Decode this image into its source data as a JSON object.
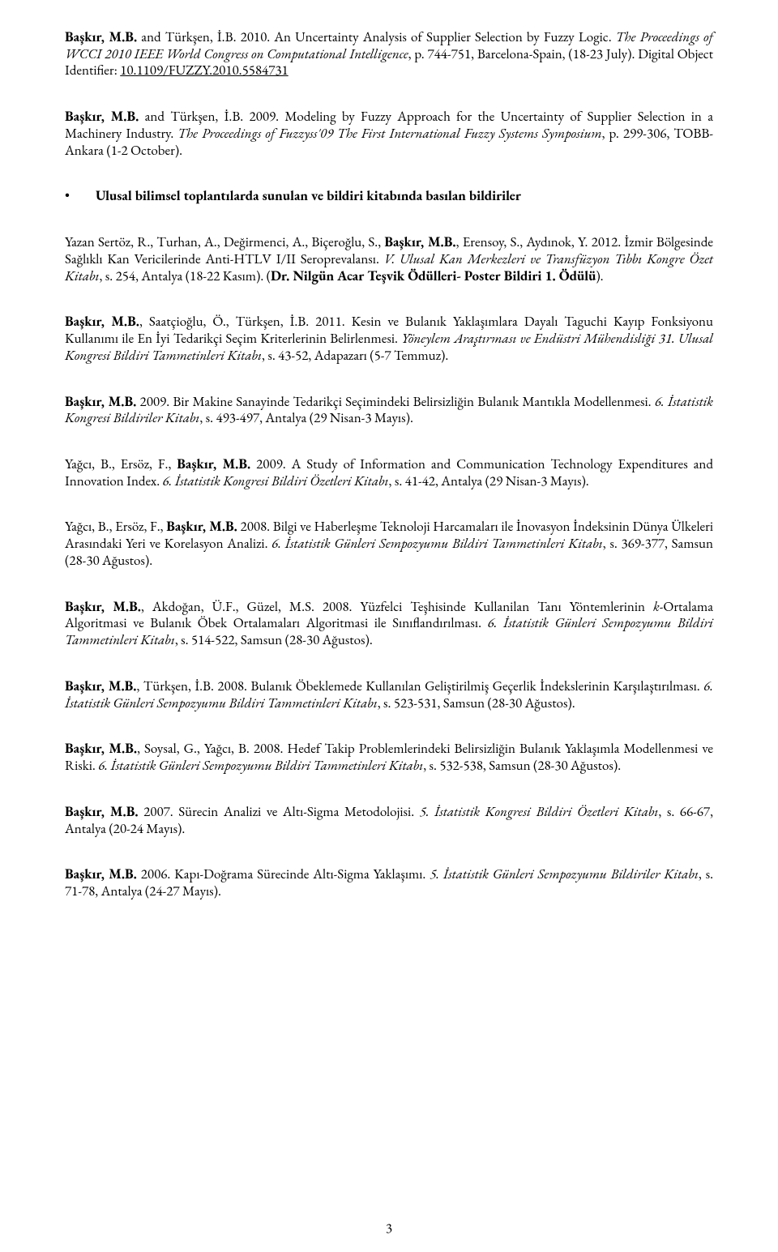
{
  "entries": {
    "e1_bold": "Başkır, M.B.",
    "e1_rest1": " and Türkşen, İ.B. 2010. An Uncertainty Analysis of Supplier Selection by Fuzzy Logic. ",
    "e1_italic": "The Proceedings of WCCI 2010 IEEE World Congress on Computational Intelligence",
    "e1_rest2": ", p. 744-751, Barcelona-Spain, (18-23 July). Digital Object Identifier: ",
    "e1_link": "10.1109/FUZZY.2010.5584731",
    "e2_bold": "Başkır, M.B.",
    "e2_rest1": " and Türkşen, İ.B. 2009. Modeling by Fuzzy Approach for the Uncertainty of Supplier Selection in a Machinery Industry. ",
    "e2_italic": "The Proceedings of Fuzzyss'09 The First International Fuzzy Systems Symposium",
    "e2_rest2": ", p. 299-306, TOBB-Ankara (1-2 October).",
    "heading": "Ulusal bilimsel toplantılarda sunulan ve bildiri kitabında basılan bildiriler",
    "e3_pre": "Yazan Sertöz, R., Turhan, A., Değirmenci, A., Biçeroğlu, S., ",
    "e3_bold": "Başkır, M.B.",
    "e3_rest1": ", Erensoy, S., Aydınok, Y. 2012. İzmir Bölgesinde Sağlıklı Kan Vericilerinde Anti-HTLV I/II Seroprevalansı. ",
    "e3_italic": "V. Ulusal Kan Merkezleri ve Transfüzyon Tıbbı Kongre Özet Kitabı",
    "e3_rest2": ", s. 254, Antalya (18-22 Kasım). (",
    "e3_bold2": "Dr. Nilgün Acar Teşvik Ödülleri- Poster Bildiri 1. Ödülü",
    "e3_rest3": ").",
    "e4_bold": "Başkır, M.B.",
    "e4_rest1": ", Saatçioğlu, Ö., Türkşen, İ.B. 2011. Kesin ve Bulanık Yaklaşımlara Dayalı Taguchi Kayıp Fonksiyonu Kullanımı ile En İyi Tedarikçi Seçim Kriterlerinin Belirlenmesi. ",
    "e4_italic": "Yöneylem Araştırması ve Endüstri Mühendisliği 31. Ulusal Kongresi Bildiri Tammetinleri Kitabı",
    "e4_rest2": ", s. 43-52, Adapazarı (5-7 Temmuz).",
    "e5_bold": "Başkır, M.B.",
    "e5_rest1": " 2009. Bir Makine Sanayinde Tedarikçi Seçimindeki Belirsizliğin Bulanık Mantıkla Modellenmesi. ",
    "e5_italic": "6. İstatistik Kongresi Bildiriler Kitabı",
    "e5_rest2": ", s. 493-497, Antalya (29 Nisan-3 Mayıs).",
    "e6_pre": "Yağcı, B., Ersöz, F., ",
    "e6_bold": "Başkır, M.B.",
    "e6_rest1": " 2009. A Study of Information and Communication Technology Expenditures and Innovation Index. ",
    "e6_italic": "6. İstatistik Kongresi Bildiri Özetleri Kitabı",
    "e6_rest2": ", s. 41-42, Antalya (29 Nisan-3 Mayıs).",
    "e7_pre": "Yağcı, B., Ersöz, F., ",
    "e7_bold": "Başkır, M.B.",
    "e7_rest1": " 2008. Bilgi ve Haberleşme Teknoloji Harcamaları ile İnovasyon İndeksinin Dünya Ülkeleri Arasındaki Yeri ve Korelasyon Analizi. ",
    "e7_italic": "6. İstatistik Günleri Sempozyumu Bildiri Tammetinleri Kitabı",
    "e7_rest2": ", s. 369-377, Samsun (28-30 Ağustos).",
    "e8_bold": "Başkır, M.B.",
    "e8_rest1": ", Akdoğan, Ü.F., Güzel, M.S. 2008. Yüzfelci Teşhisinde Kullanilan Tanı Yöntemlerinin ",
    "e8_ital1": "k",
    "e8_rest1b": "-Ortalama Algoritmasi ve Bulanık Öbek Ortalamaları Algoritmasi ile Sınıflandırılması. ",
    "e8_italic": "6. İstatistik Günleri Sempozyumu Bildiri Tammetinleri Kitabı",
    "e8_rest2": ", s. 514-522, Samsun (28-30 Ağustos).",
    "e9_bold": "Başkır, M.B.",
    "e9_rest1": ", Türkşen, İ.B. 2008. Bulanık Öbeklemede Kullanılan Geliştirilmiş Geçerlik İndekslerinin Karşılaştırılması. ",
    "e9_italic": "6. İstatistik Günleri Sempozyumu Bildiri Tammetinleri Kitabı",
    "e9_rest2": ", s. 523-531, Samsun (28-30 Ağustos).",
    "e10_bold": "Başkır, M.B.",
    "e10_rest1": ", Soysal, G., Yağcı, B. 2008. Hedef Takip Problemlerindeki Belirsizliğin Bulanık Yaklaşımla Modellenmesi ve Riski. ",
    "e10_italic": "6. İstatistik Günleri Sempozyumu Bildiri Tammetinleri Kitabı",
    "e10_rest2": ", s. 532-538, Samsun (28-30 Ağustos).",
    "e11_bold": "Başkır, M.B.",
    "e11_rest1": " 2007. Sürecin Analizi ve Altı-Sigma Metodolojisi. ",
    "e11_italic": "5. İstatistik Kongresi Bildiri Özetleri Kitabı",
    "e11_rest2": ", s. 66-67, Antalya (20-24 Mayıs).",
    "e12_bold": "Başkır, M.B.",
    "e12_rest1": " 2006. Kapı-Doğrama Sürecinde Altı-Sigma Yaklaşımı. ",
    "e12_italic": "5. İstatistik Günleri Sempozyumu Bildiriler Kitabı",
    "e12_rest2": ", s. 71-78, Antalya (24-27 Mayıs)."
  },
  "page_number": "3"
}
